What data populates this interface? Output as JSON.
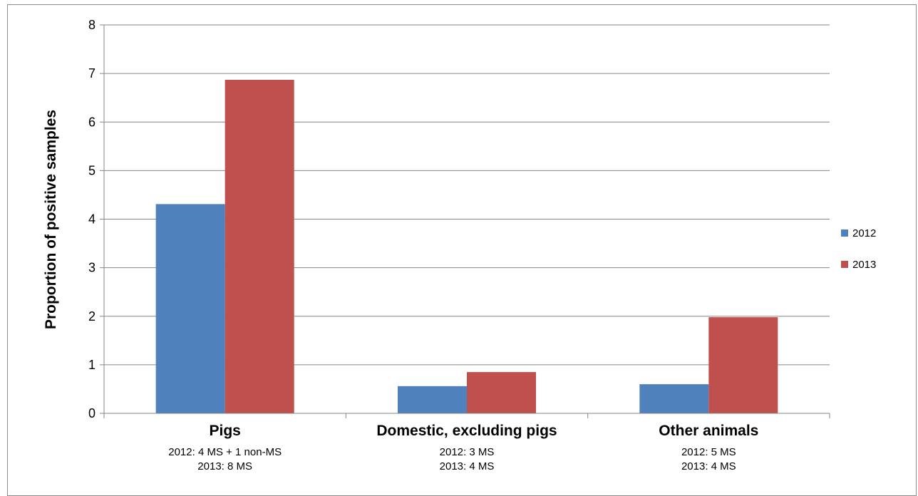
{
  "chart_data": {
    "type": "bar",
    "title": "",
    "xlabel": "",
    "ylabel": "Proportion of positive samples",
    "ylim": [
      0,
      8
    ],
    "yticks": [
      0,
      1,
      2,
      3,
      4,
      5,
      6,
      7,
      8
    ],
    "grid": true,
    "legend_position": "right",
    "categories": [
      "Pigs",
      "Domestic, excluding pigs",
      "Other animals"
    ],
    "category_notes": [
      [
        "2012: 4 MS + 1 non-MS",
        "2013: 8 MS"
      ],
      [
        "2012: 3 MS",
        "2013: 4 MS"
      ],
      [
        "2012: 5 MS",
        "2013: 4 MS"
      ]
    ],
    "series": [
      {
        "name": "2012",
        "color": "#4f81bd",
        "values": [
          4.31,
          0.56,
          0.6
        ]
      },
      {
        "name": "2013",
        "color": "#c0504d",
        "values": [
          6.87,
          0.85,
          1.98
        ]
      }
    ]
  }
}
